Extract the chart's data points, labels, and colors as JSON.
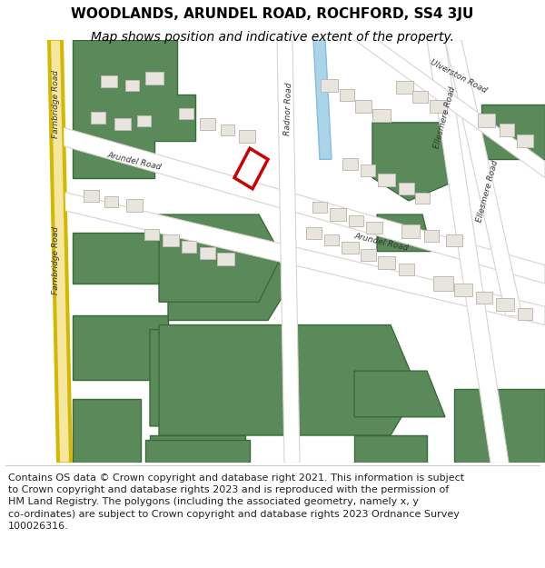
{
  "title": "WOODLANDS, ARUNDEL ROAD, ROCHFORD, SS4 3JU",
  "subtitle": "Map shows position and indicative extent of the property.",
  "footer_line1": "Contains OS data © Crown copyright and database right 2021. This information is subject",
  "footer_line2": "to Crown copyright and database rights 2023 and is reproduced with the permission of",
  "footer_line3": "HM Land Registry. The polygons (including the associated geometry, namely x, y",
  "footer_line4": "co-ordinates) are subject to Crown copyright and database rights 2023 Ordnance Survey",
  "footer_line5": "100026316.",
  "map_bg": "#f2efe9",
  "green_color": "#5a8a5a",
  "building_outline": "#c0bbb4",
  "building_fill": "#e8e4de",
  "highlight_color": "#cc0000",
  "highlight_fill": "#ffffff",
  "road_yellow": "#f5e6a0",
  "road_yellow_outline": "#d4b800",
  "water_color": "#aad4e8",
  "title_fontsize": 11,
  "subtitle_fontsize": 10,
  "footer_fontsize": 8.0
}
